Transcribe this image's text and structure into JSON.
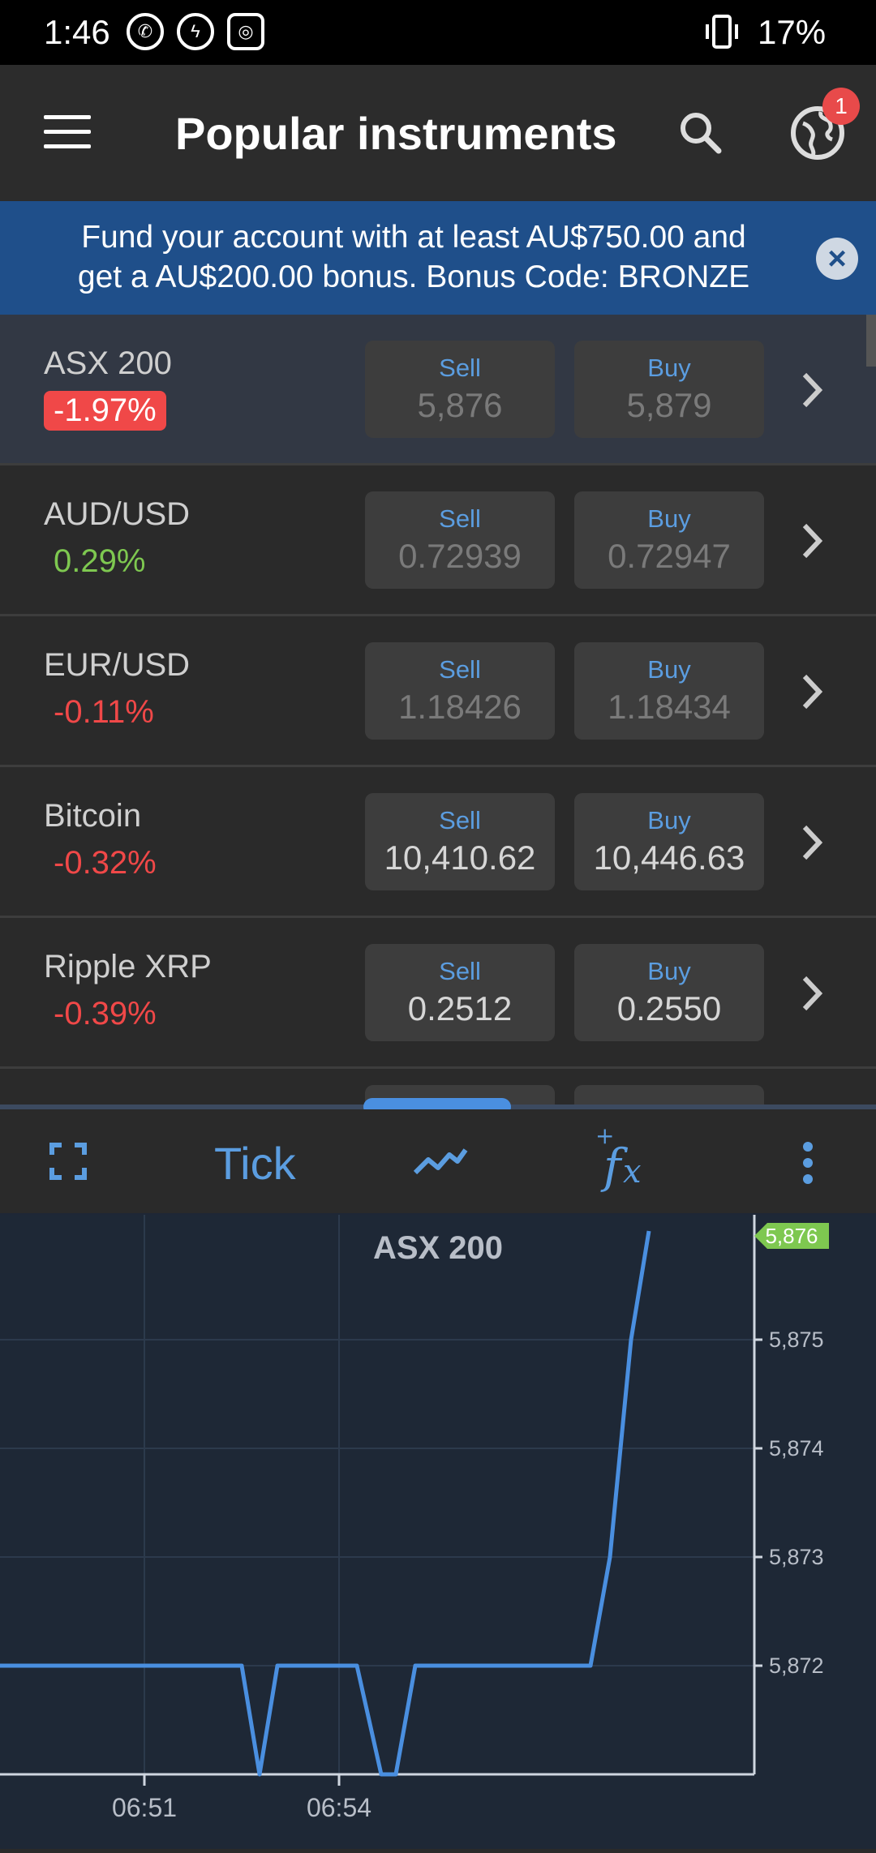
{
  "status_bar": {
    "time": "1:46",
    "app_icons": [
      "whatsapp-icon",
      "messenger-icon",
      "instagram-icon"
    ],
    "battery": "17%"
  },
  "app_bar": {
    "title": "Popular instruments",
    "notification_count": "1"
  },
  "banner": {
    "line1": "Fund your account with at least AU$750.00 and",
    "line2": "get a AU$200.00 bonus. Bonus Code: BRONZE"
  },
  "instruments": [
    {
      "name": "ASX 200",
      "change": "-1.97%",
      "sell_label": "Sell",
      "sell": "5,876",
      "buy_label": "Buy",
      "buy": "5,879"
    },
    {
      "name": "AUD/USD",
      "change": "0.29%",
      "sell_label": "Sell",
      "sell": "0.72939",
      "buy_label": "Buy",
      "buy": "0.72947"
    },
    {
      "name": "EUR/USD",
      "change": "-0.11%",
      "sell_label": "Sell",
      "sell": "1.18426",
      "buy_label": "Buy",
      "buy": "1.18434"
    },
    {
      "name": "Bitcoin",
      "change": "-0.32%",
      "sell_label": "Sell",
      "sell": "10,410.62",
      "buy_label": "Buy",
      "buy": "10,446.63"
    },
    {
      "name": "Ripple XRP",
      "change": "-0.39%",
      "sell_label": "Sell",
      "sell": "0.2512",
      "buy_label": "Buy",
      "buy": "0.2550"
    }
  ],
  "chart_toolbar": {
    "mode": "Tick"
  },
  "chart_data": {
    "type": "line",
    "title": "ASX 200",
    "current_value_label": "5,876",
    "x_ticks": [
      "06:51",
      "06:54"
    ],
    "y_ticks": [
      "5,875",
      "5,874",
      "5,873",
      "5,872"
    ],
    "ylim": [
      5871,
      5876
    ],
    "series": [
      {
        "name": "ASX 200",
        "values": [
          5872,
          5872,
          5872,
          5872,
          5872,
          5871,
          5872,
          5872,
          5872,
          5871,
          5871,
          5872,
          5872,
          5872,
          5872,
          5872,
          5873,
          5875,
          5876
        ]
      }
    ],
    "colors": {
      "line": "#4a8fe0",
      "price_tag": "#7ec850"
    }
  }
}
